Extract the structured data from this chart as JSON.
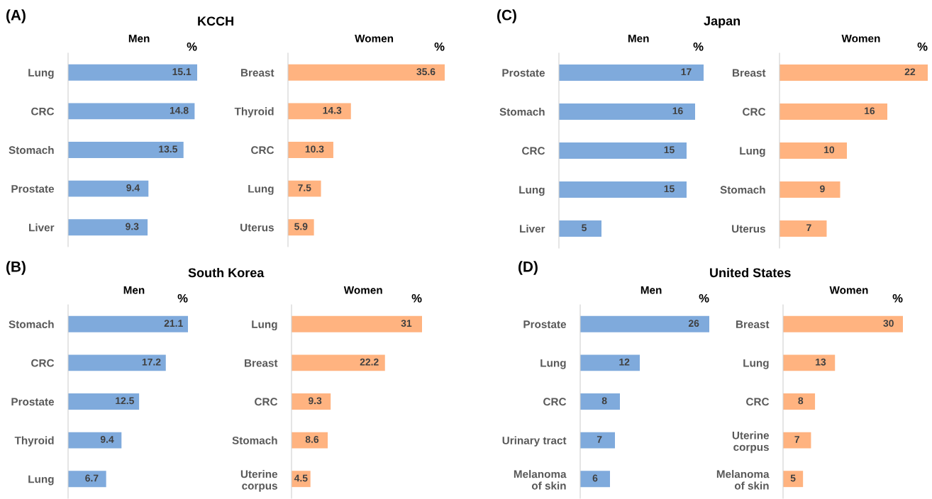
{
  "chart_data": [
    {
      "type": "bar",
      "orientation": "horizontal",
      "title": "KCCH",
      "subtitle": "Men",
      "annotations": [
        "(A)",
        "%"
      ],
      "categories": [
        "Lung",
        "CRC",
        "Stomach",
        "Prostate",
        "Liver"
      ],
      "values": [
        15.1,
        14.8,
        13.5,
        9.4,
        9.3
      ],
      "color": "#7faadc",
      "data_labels": true
    },
    {
      "type": "bar",
      "orientation": "horizontal",
      "subtitle": "Women",
      "annotations": [
        "%"
      ],
      "categories": [
        "Breast",
        "Thyroid",
        "CRC",
        "Lung",
        "Uterus"
      ],
      "values": [
        35.6,
        14.3,
        10.3,
        7.5,
        5.9
      ],
      "color": "#ffb380",
      "data_labels": true
    },
    {
      "type": "bar",
      "orientation": "horizontal",
      "title": "Japan",
      "subtitle": "Men",
      "annotations": [
        "(C)",
        "%"
      ],
      "categories": [
        "Prostate",
        "Stomach",
        "CRC",
        "Lung",
        "Liver"
      ],
      "values": [
        17,
        16,
        15,
        15,
        5
      ],
      "color": "#7faadc",
      "data_labels": true
    },
    {
      "type": "bar",
      "orientation": "horizontal",
      "subtitle": "Women",
      "annotations": [
        "%"
      ],
      "categories": [
        "Breast",
        "CRC",
        "Lung",
        "Stomach",
        "Uterus"
      ],
      "values": [
        22,
        16,
        10,
        9,
        7
      ],
      "color": "#ffb380",
      "data_labels": true
    },
    {
      "type": "bar",
      "orientation": "horizontal",
      "title": "South Korea",
      "subtitle": "Men",
      "annotations": [
        "(B)",
        "%"
      ],
      "categories": [
        "Stomach",
        "CRC",
        "Prostate",
        "Thyroid",
        "Lung"
      ],
      "values": [
        21.1,
        17.2,
        12.5,
        9.4,
        6.7
      ],
      "color": "#7faadc",
      "data_labels": true
    },
    {
      "type": "bar",
      "orientation": "horizontal",
      "subtitle": "Women",
      "annotations": [
        "%"
      ],
      "categories": [
        "Lung",
        "Breast",
        "CRC",
        "Stomach",
        "Uterine\ncorpus"
      ],
      "values": [
        31,
        22.2,
        9.3,
        8.6,
        4.5
      ],
      "color": "#ffb380",
      "data_labels": true
    },
    {
      "type": "bar",
      "orientation": "horizontal",
      "title": "United States",
      "subtitle": "Men",
      "annotations": [
        "(D)",
        "%"
      ],
      "categories": [
        "Prostate",
        "Lung",
        "CRC",
        "Urinary tract",
        "Melanoma\nof skin"
      ],
      "values": [
        26,
        12,
        8,
        7,
        6
      ],
      "color": "#7faadc",
      "data_labels": true
    },
    {
      "type": "bar",
      "orientation": "horizontal",
      "subtitle": "Women",
      "annotations": [
        "%"
      ],
      "categories": [
        "Breast",
        "Lung",
        "CRC",
        "Uterine\ncorpus",
        "Melanoma\nof skin"
      ],
      "values": [
        30,
        13,
        8,
        7,
        5
      ],
      "color": "#ffb380",
      "data_labels": true
    }
  ]
}
